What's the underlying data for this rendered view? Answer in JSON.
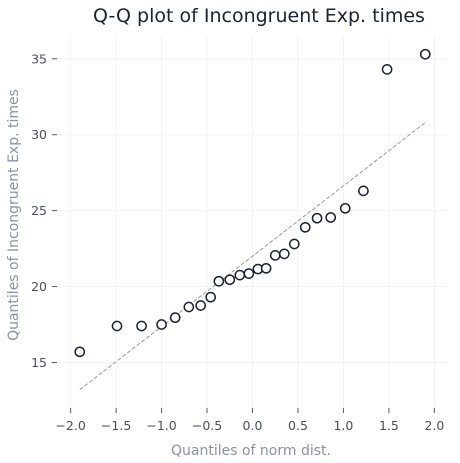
{
  "chart_data": {
    "type": "scatter",
    "title": "Q-Q plot of Incongruent Exp. times",
    "xlabel": "Quantiles of norm dist.",
    "ylabel": "Quantiles of Incongruent Exp. times",
    "xlim": [
      -2.15,
      2.15
    ],
    "ylim": [
      12.0,
      36.5
    ],
    "x_ticks": [
      -2.0,
      -1.5,
      -1.0,
      -0.5,
      0.0,
      0.5,
      1.0,
      1.5,
      2.0
    ],
    "x_tick_labels": [
      "−2.0",
      "−1.5",
      "−1.0",
      "−0.5",
      "0.0",
      "0.5",
      "1.0",
      "1.5",
      "2.0"
    ],
    "y_ticks": [
      15,
      20,
      25,
      30,
      35
    ],
    "y_tick_labels": [
      "15",
      "20",
      "25",
      "30",
      "35"
    ],
    "grid": true,
    "point_color": "#1a2233",
    "reference_line": {
      "style": "dashed",
      "color": "#9a9a9a",
      "points": [
        [
          -1.9,
          13.2
        ],
        [
          1.9,
          30.8
        ]
      ]
    },
    "points": [
      {
        "x": -1.9,
        "y": 15.7
      },
      {
        "x": -1.49,
        "y": 17.4
      },
      {
        "x": -1.22,
        "y": 17.4
      },
      {
        "x": -1.0,
        "y": 17.5
      },
      {
        "x": -0.85,
        "y": 17.95
      },
      {
        "x": -0.7,
        "y": 18.65
      },
      {
        "x": -0.57,
        "y": 18.75
      },
      {
        "x": -0.46,
        "y": 19.3
      },
      {
        "x": -0.37,
        "y": 20.35
      },
      {
        "x": -0.25,
        "y": 20.45
      },
      {
        "x": -0.14,
        "y": 20.75
      },
      {
        "x": -0.04,
        "y": 20.85
      },
      {
        "x": 0.06,
        "y": 21.15
      },
      {
        "x": 0.15,
        "y": 21.2
      },
      {
        "x": 0.25,
        "y": 22.05
      },
      {
        "x": 0.35,
        "y": 22.15
      },
      {
        "x": 0.46,
        "y": 22.8
      },
      {
        "x": 0.58,
        "y": 23.9
      },
      {
        "x": 0.71,
        "y": 24.5
      },
      {
        "x": 0.86,
        "y": 24.55
      },
      {
        "x": 1.02,
        "y": 25.15
      },
      {
        "x": 1.22,
        "y": 26.3
      },
      {
        "x": 1.48,
        "y": 34.3
      },
      {
        "x": 1.9,
        "y": 35.3
      }
    ]
  }
}
